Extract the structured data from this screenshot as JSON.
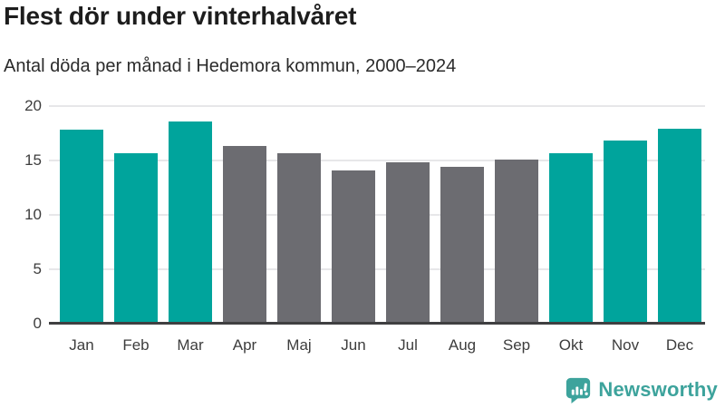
{
  "title": "Flest dör under vinterhalvåret",
  "subtitle": "Antal döda per månad i Hedemora kommun, 2000–2024",
  "chart_data": {
    "type": "bar",
    "categories": [
      "Jan",
      "Feb",
      "Mar",
      "Apr",
      "Maj",
      "Jun",
      "Jul",
      "Aug",
      "Sep",
      "Okt",
      "Nov",
      "Dec"
    ],
    "values": [
      17.8,
      15.7,
      18.6,
      16.3,
      15.7,
      14.1,
      14.8,
      14.4,
      15.1,
      15.7,
      16.8,
      17.9
    ],
    "highlighted_categories": [
      "Jan",
      "Feb",
      "Mar",
      "Okt",
      "Nov",
      "Dec"
    ],
    "title": "Flest dör under vinterhalvåret",
    "subtitle": "Antal döda per månad i Hedemora kommun, 2000–2024",
    "xlabel": "",
    "ylabel": "",
    "ylim": [
      0,
      20
    ],
    "yticks": [
      0,
      5,
      10,
      15,
      20
    ],
    "grid": true,
    "legend": "none",
    "colors": {
      "highlight": "#00a49c",
      "muted": "#6c6c71"
    }
  },
  "footer": {
    "brand": "Newsworthy",
    "brand_color": "#3da39c",
    "icon": "newsworthy-speech-bubble-bar-chart-icon"
  }
}
